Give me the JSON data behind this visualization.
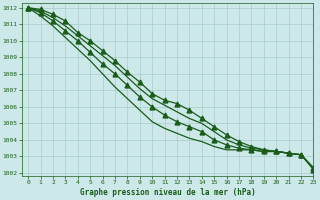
{
  "background_color": "#cce8e8",
  "grid_color": "#aacccc",
  "line_color": "#1a5c1a",
  "text_color": "#1a5c1a",
  "xlabel": "Graphe pression niveau de la mer (hPa)",
  "xlim": [
    -0.5,
    23
  ],
  "ylim": [
    1001.8,
    1012.3
  ],
  "yticks": [
    1002,
    1003,
    1004,
    1005,
    1006,
    1007,
    1008,
    1009,
    1010,
    1011,
    1012
  ],
  "xticks": [
    0,
    1,
    2,
    3,
    4,
    5,
    6,
    7,
    8,
    9,
    10,
    11,
    12,
    13,
    14,
    15,
    16,
    17,
    18,
    19,
    20,
    21,
    22,
    23
  ],
  "series": [
    [
      1012.0,
      1011.9,
      1011.6,
      1011.2,
      1010.5,
      1010.0,
      1009.4,
      1008.8,
      1008.1,
      1007.5,
      1006.8,
      1006.4,
      1006.2,
      1005.8,
      1005.3,
      1004.8,
      1004.3,
      1003.9,
      1003.6,
      1003.4,
      1003.3,
      1003.2,
      1003.1,
      1002.2
    ],
    [
      1012.0,
      1011.8,
      1011.4,
      1010.9,
      1010.3,
      1009.7,
      1009.1,
      1008.5,
      1007.8,
      1007.1,
      1006.5,
      1006.1,
      1005.7,
      1005.3,
      1005.0,
      1004.5,
      1004.0,
      1003.7,
      1003.5,
      1003.4,
      1003.3,
      1003.2,
      1003.1,
      1002.3
    ],
    [
      1012.0,
      1011.7,
      1011.2,
      1010.6,
      1010.0,
      1009.3,
      1008.6,
      1008.0,
      1007.3,
      1006.6,
      1006.0,
      1005.5,
      1005.1,
      1004.8,
      1004.5,
      1004.0,
      1003.7,
      1003.5,
      1003.4,
      1003.3,
      1003.3,
      1003.2,
      1003.1,
      1002.3
    ],
    [
      1012.0,
      1011.5,
      1010.9,
      1010.2,
      1009.5,
      1008.8,
      1008.0,
      1007.2,
      1006.5,
      1005.8,
      1005.1,
      1004.7,
      1004.4,
      1004.1,
      1003.9,
      1003.6,
      1003.4,
      1003.4,
      1003.4,
      1003.3,
      1003.3,
      1003.2,
      1003.1,
      1002.3
    ]
  ],
  "marker_indices": [
    0,
    2
  ],
  "marker": "^",
  "marker_size": 3.5,
  "linewidth": 0.9
}
